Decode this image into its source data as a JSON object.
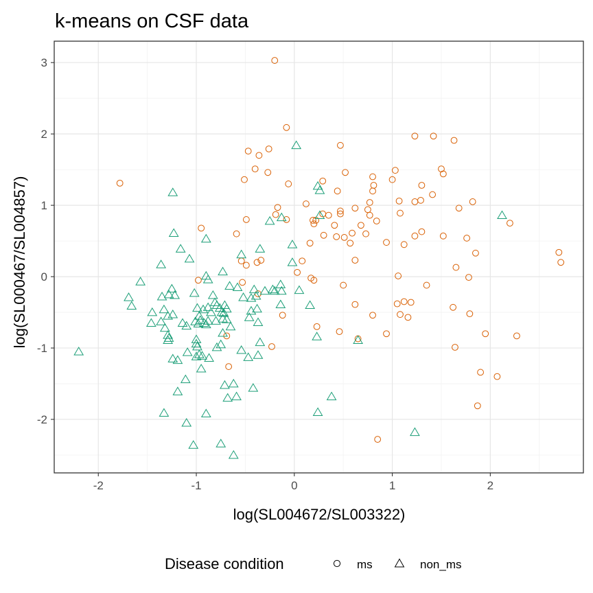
{
  "chart_data": {
    "type": "scatter",
    "title": "k-means on CSF data",
    "xlabel": "log(SL004672/SL003322)",
    "ylabel": "log(SL000467/SL004857)",
    "xlim": [
      -2.45,
      2.95
    ],
    "ylim": [
      -2.75,
      3.3
    ],
    "x_ticks": [
      -2,
      -1,
      0,
      1,
      2
    ],
    "y_ticks": [
      -2,
      -1,
      0,
      1,
      2,
      3
    ],
    "grid": true,
    "legend": {
      "title": "Disease condition",
      "position": "bottom",
      "entries": [
        {
          "label": "ms",
          "shape": "circle",
          "color": "#D95F02"
        },
        {
          "label": "non_ms",
          "shape": "triangle",
          "color": "#1B9E77"
        }
      ]
    },
    "series": [
      {
        "name": "ms",
        "shape": "circle",
        "color": "#D95F02",
        "points": [
          [
            -0.2,
            3.03
          ],
          [
            -0.08,
            2.09
          ],
          [
            0.47,
            1.84
          ],
          [
            1.23,
            1.97
          ],
          [
            1.42,
            1.97
          ],
          [
            1.63,
            1.91
          ],
          [
            -0.47,
            1.76
          ],
          [
            -0.26,
            1.79
          ],
          [
            -0.36,
            1.7
          ],
          [
            -0.4,
            1.51
          ],
          [
            -0.27,
            1.46
          ],
          [
            -0.51,
            1.36
          ],
          [
            -0.06,
            1.3
          ],
          [
            0.52,
            1.46
          ],
          [
            0.29,
            1.34
          ],
          [
            0.8,
            1.4
          ],
          [
            1.0,
            1.36
          ],
          [
            1.03,
            1.49
          ],
          [
            1.5,
            1.51
          ],
          [
            1.52,
            1.44
          ],
          [
            0.44,
            1.2
          ],
          [
            0.81,
            1.28
          ],
          [
            0.8,
            1.2
          ],
          [
            1.3,
            1.28
          ],
          [
            1.41,
            1.15
          ],
          [
            0.77,
            1.04
          ],
          [
            1.07,
            1.06
          ],
          [
            1.23,
            1.05
          ],
          [
            1.29,
            1.07
          ],
          [
            1.68,
            0.96
          ],
          [
            1.82,
            1.05
          ],
          [
            -0.17,
            0.97
          ],
          [
            -0.19,
            0.87
          ],
          [
            -0.08,
            0.8
          ],
          [
            0.12,
            1.02
          ],
          [
            0.29,
            0.88
          ],
          [
            0.47,
            0.92
          ],
          [
            0.47,
            0.88
          ],
          [
            0.62,
            0.96
          ],
          [
            0.75,
            0.94
          ],
          [
            0.77,
            0.86
          ],
          [
            1.08,
            0.89
          ],
          [
            0.19,
            0.79
          ],
          [
            0.22,
            0.79
          ],
          [
            0.35,
            0.86
          ],
          [
            0.41,
            0.72
          ],
          [
            0.84,
            0.78
          ],
          [
            -0.49,
            0.8
          ],
          [
            1.52,
            0.57
          ],
          [
            2.2,
            0.75
          ],
          [
            -0.95,
            0.68
          ],
          [
            -0.59,
            0.6
          ],
          [
            0.2,
            0.74
          ],
          [
            0.3,
            0.58
          ],
          [
            0.43,
            0.56
          ],
          [
            0.51,
            0.55
          ],
          [
            0.59,
            0.61
          ],
          [
            0.68,
            0.72
          ],
          [
            0.73,
            0.6
          ],
          [
            1.23,
            0.57
          ],
          [
            1.3,
            0.63
          ],
          [
            0.16,
            0.47
          ],
          [
            0.57,
            0.47
          ],
          [
            0.94,
            0.48
          ],
          [
            1.12,
            0.45
          ],
          [
            1.76,
            0.54
          ],
          [
            -0.54,
            0.22
          ],
          [
            -0.49,
            0.16
          ],
          [
            -0.38,
            0.2
          ],
          [
            -0.34,
            0.23
          ],
          [
            0.08,
            0.22
          ],
          [
            0.03,
            0.06
          ],
          [
            0.17,
            -0.02
          ],
          [
            0.2,
            -0.05
          ],
          [
            0.62,
            0.23
          ],
          [
            1.65,
            0.13
          ],
          [
            1.85,
            0.33
          ],
          [
            2.7,
            0.34
          ],
          [
            2.72,
            0.2
          ],
          [
            -0.98,
            -0.05
          ],
          [
            -0.37,
            -0.24
          ],
          [
            -0.53,
            -0.08
          ],
          [
            0.5,
            -0.12
          ],
          [
            1.06,
            0.01
          ],
          [
            1.35,
            -0.12
          ],
          [
            1.78,
            -0.01
          ],
          [
            -0.12,
            -0.54
          ],
          [
            0.62,
            -0.39
          ],
          [
            0.8,
            -0.54
          ],
          [
            1.05,
            -0.38
          ],
          [
            1.08,
            -0.53
          ],
          [
            1.12,
            -0.35
          ],
          [
            1.16,
            -0.57
          ],
          [
            1.19,
            -0.36
          ],
          [
            1.62,
            -0.43
          ],
          [
            1.79,
            -0.52
          ],
          [
            0.23,
            -0.7
          ],
          [
            0.46,
            -0.77
          ],
          [
            0.65,
            -0.87
          ],
          [
            0.94,
            -0.8
          ],
          [
            1.95,
            -0.8
          ],
          [
            2.27,
            -0.83
          ],
          [
            -0.23,
            -0.98
          ],
          [
            -0.69,
            -0.83
          ],
          [
            -0.67,
            -1.26
          ],
          [
            1.64,
            -0.99
          ],
          [
            1.9,
            -1.34
          ],
          [
            2.07,
            -1.4
          ],
          [
            1.87,
            -1.81
          ],
          [
            0.85,
            -2.28
          ],
          [
            -1.78,
            1.31
          ]
        ]
      },
      {
        "name": "non_ms",
        "shape": "triangle",
        "color": "#1B9E77",
        "points": [
          [
            0.02,
            1.84
          ],
          [
            -1.24,
            1.18
          ],
          [
            0.24,
            1.27
          ],
          [
            0.26,
            1.21
          ],
          [
            2.12,
            0.86
          ],
          [
            -0.25,
            0.78
          ],
          [
            -0.13,
            0.83
          ],
          [
            -1.23,
            0.61
          ],
          [
            -0.9,
            0.53
          ],
          [
            -1.16,
            0.39
          ],
          [
            -1.07,
            0.25
          ],
          [
            -0.02,
            0.45
          ],
          [
            -0.54,
            0.31
          ],
          [
            -0.35,
            0.39
          ],
          [
            -1.36,
            0.17
          ],
          [
            -1.57,
            -0.07
          ],
          [
            -1.69,
            -0.29
          ],
          [
            -1.66,
            -0.41
          ],
          [
            -1.45,
            -0.5
          ],
          [
            -1.46,
            -0.65
          ],
          [
            -1.36,
            -0.63
          ],
          [
            -1.35,
            -0.28
          ],
          [
            -1.28,
            -0.25
          ],
          [
            -1.25,
            -0.17
          ],
          [
            -1.22,
            -0.26
          ],
          [
            -1.24,
            -0.53
          ],
          [
            -1.33,
            -0.46
          ],
          [
            -1.29,
            -0.55
          ],
          [
            -0.9,
            0.01
          ],
          [
            -0.88,
            -0.04
          ],
          [
            -1.02,
            -0.23
          ],
          [
            -0.99,
            -0.44
          ],
          [
            -0.93,
            -0.46
          ],
          [
            -0.97,
            -0.55
          ],
          [
            -0.96,
            -0.61
          ],
          [
            -1.01,
            -0.63
          ],
          [
            -0.98,
            -0.66
          ],
          [
            -0.92,
            -0.65
          ],
          [
            -0.88,
            -0.62
          ],
          [
            -0.83,
            -0.26
          ],
          [
            -0.81,
            -0.36
          ],
          [
            -0.79,
            -0.4
          ],
          [
            -0.76,
            -0.44
          ],
          [
            -0.74,
            -0.5
          ],
          [
            -0.73,
            -0.59
          ],
          [
            -0.72,
            -0.51
          ],
          [
            -0.71,
            -0.4
          ],
          [
            -0.69,
            -0.45
          ],
          [
            -0.73,
            0.07
          ],
          [
            -0.66,
            -0.13
          ],
          [
            -0.58,
            -0.15
          ],
          [
            -0.44,
            -0.3
          ],
          [
            -0.44,
            -0.48
          ],
          [
            -0.46,
            -0.57
          ],
          [
            -0.39,
            -0.27
          ],
          [
            -0.38,
            -0.45
          ],
          [
            -0.37,
            -0.64
          ],
          [
            -0.2,
            -0.2
          ],
          [
            -0.14,
            -0.11
          ],
          [
            -0.02,
            0.2
          ],
          [
            0.05,
            -0.19
          ],
          [
            0.16,
            -0.4
          ],
          [
            -0.14,
            -0.39
          ],
          [
            -0.13,
            -0.2
          ],
          [
            -0.22,
            -0.18
          ],
          [
            -0.3,
            -0.2
          ],
          [
            -0.88,
            -0.43
          ],
          [
            -0.85,
            -0.5
          ],
          [
            -0.8,
            -0.62
          ],
          [
            -0.69,
            -0.6
          ],
          [
            -1.1,
            -0.69
          ],
          [
            -1.14,
            -0.65
          ],
          [
            -1.32,
            -0.72
          ],
          [
            -1.29,
            -0.82
          ],
          [
            -1.28,
            -0.86
          ],
          [
            -1.29,
            -0.89
          ],
          [
            -1.0,
            -0.88
          ],
          [
            -1.0,
            -0.94
          ],
          [
            -0.99,
            -0.98
          ],
          [
            -0.97,
            -1.09
          ],
          [
            -0.94,
            -1.11
          ],
          [
            -0.87,
            -1.14
          ],
          [
            -0.75,
            -0.95
          ],
          [
            -0.73,
            -0.79
          ],
          [
            -0.79,
            -0.99
          ],
          [
            -0.54,
            -1.03
          ],
          [
            -0.35,
            -0.92
          ],
          [
            -0.37,
            -1.1
          ],
          [
            -0.47,
            -1.13
          ],
          [
            -1.24,
            -1.15
          ],
          [
            -1.19,
            -1.17
          ],
          [
            -1.09,
            -1.06
          ],
          [
            -1.0,
            -1.12
          ],
          [
            -0.95,
            -1.29
          ],
          [
            -1.11,
            -1.44
          ],
          [
            -1.19,
            -1.61
          ],
          [
            -0.71,
            -1.52
          ],
          [
            -0.68,
            -1.7
          ],
          [
            -0.62,
            -1.5
          ],
          [
            -0.59,
            -1.68
          ],
          [
            -0.42,
            -1.56
          ],
          [
            -1.33,
            -1.91
          ],
          [
            -1.1,
            -2.05
          ],
          [
            -0.9,
            -1.92
          ],
          [
            -1.03,
            -2.36
          ],
          [
            -0.75,
            -2.34
          ],
          [
            -0.62,
            -2.5
          ],
          [
            0.24,
            -1.9
          ],
          [
            0.38,
            -1.68
          ],
          [
            0.23,
            -0.84
          ],
          [
            0.65,
            -0.89
          ],
          [
            1.23,
            -2.18
          ],
          [
            -2.2,
            -1.05
          ],
          [
            -0.65,
            -0.7
          ],
          [
            -0.52,
            -0.29
          ],
          [
            -0.9,
            -0.67
          ],
          [
            -0.41,
            -0.18
          ],
          [
            0.26,
            0.86
          ]
        ]
      }
    ]
  }
}
